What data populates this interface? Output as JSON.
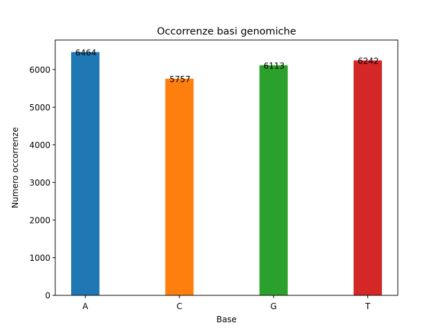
{
  "chart_data": {
    "type": "bar",
    "title": "Occorrenze basi genomiche",
    "xlabel": "Base",
    "ylabel": "Numero occorrenze",
    "categories": [
      "A",
      "C",
      "G",
      "T"
    ],
    "values": [
      6464,
      5757,
      6113,
      6242
    ],
    "data_labels": [
      "6464",
      "5757",
      "6113",
      "6242"
    ],
    "colors": [
      "#1f77b4",
      "#ff7f0e",
      "#2ca02c",
      "#d62728"
    ],
    "ylim": [
      0,
      6784
    ],
    "yticks": [
      0,
      1000,
      2000,
      3000,
      4000,
      5000,
      6000
    ],
    "grid": false,
    "legend": "none"
  }
}
